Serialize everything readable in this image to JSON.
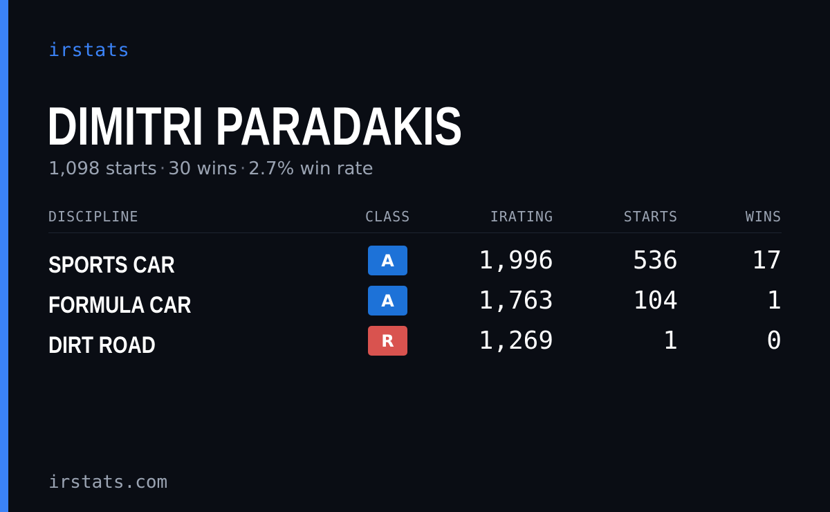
{
  "brand": "irstats",
  "driver": {
    "name": "DIMITRI PARADAKIS",
    "starts_text": "1,098 starts",
    "wins_text": "30 wins",
    "win_rate_text": "2.7% win rate",
    "separator": "·"
  },
  "table": {
    "headers": {
      "discipline": "DISCIPLINE",
      "class": "CLASS",
      "irating": "IRATING",
      "starts": "STARTS",
      "wins": "WINS"
    },
    "rows": [
      {
        "discipline": "SPORTS CAR",
        "class": "A",
        "class_color": "#1d72d8",
        "irating": "1,996",
        "starts": "536",
        "wins": "17"
      },
      {
        "discipline": "FORMULA CAR",
        "class": "A",
        "class_color": "#1d72d8",
        "irating": "1,763",
        "starts": "104",
        "wins": "1"
      },
      {
        "discipline": "DIRT ROAD",
        "class": "R",
        "class_color": "#d9534f",
        "irating": "1,269",
        "starts": "1",
        "wins": "0"
      }
    ]
  },
  "footer": "irstats.com",
  "colors": {
    "background": "#0a0d14",
    "accent": "#3b82f6",
    "muted_text": "#9aa3b2"
  }
}
